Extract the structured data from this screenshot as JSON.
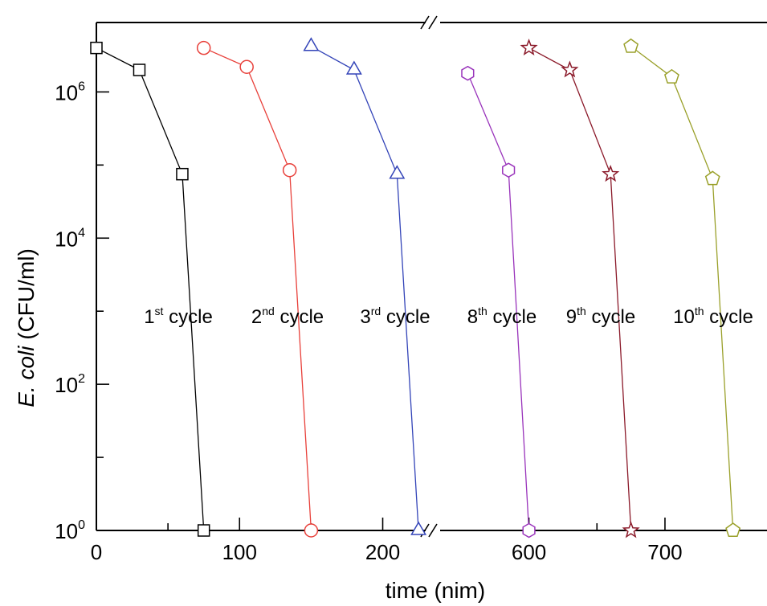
{
  "chart_data": {
    "type": "line",
    "xlabel": "time (nim)",
    "ylabel_italic": "E. coli",
    "ylabel_rest": " (CFU/ml)",
    "y_scale": "log10",
    "ylim": [
      1,
      10000000
    ],
    "y_ticks": [
      {
        "base": "10",
        "exp": "0"
      },
      {
        "base": "10",
        "exp": "2"
      },
      {
        "base": "10",
        "exp": "4"
      },
      {
        "base": "10",
        "exp": "6"
      }
    ],
    "x_axis_break": true,
    "x_segments": [
      {
        "range": [
          0,
          230
        ],
        "ticks": [
          "0",
          "100",
          "200"
        ]
      },
      {
        "range": [
          530,
          775
        ],
        "ticks": [
          "600",
          "700"
        ]
      }
    ],
    "series": [
      {
        "marker": "square",
        "color": "#000000",
        "x": [
          0,
          30,
          60,
          75
        ],
        "y": [
          4000000,
          2000000,
          75000,
          1
        ]
      },
      {
        "marker": "circle",
        "color": "#e8403a",
        "x": [
          75,
          105,
          135,
          150
        ],
        "y": [
          4000000,
          2200000,
          85000,
          1
        ]
      },
      {
        "marker": "triangle",
        "color": "#3344b8",
        "x": [
          150,
          180,
          210,
          225
        ],
        "y": [
          4200000,
          2000000,
          75000,
          1
        ]
      },
      {
        "marker": "hexagon",
        "color": "#9933bb",
        "x": [
          555,
          585,
          600
        ],
        "y": [
          1800000,
          85000,
          1
        ]
      },
      {
        "marker": "star",
        "color": "#8b1a2a",
        "x": [
          600,
          630,
          660,
          675
        ],
        "y": [
          4000000,
          2000000,
          75000,
          1
        ]
      },
      {
        "marker": "pentagon",
        "color": "#9aa02a",
        "x": [
          675,
          705,
          735,
          750
        ],
        "y": [
          4200000,
          1600000,
          65000,
          1
        ]
      }
    ],
    "annotations": [
      {
        "pre": "1",
        "sup": "st",
        "post": " cycle"
      },
      {
        "pre": "2",
        "sup": "nd",
        "post": " cycle"
      },
      {
        "pre": "3",
        "sup": "rd",
        "post": " cycle"
      },
      {
        "pre": "8",
        "sup": "th",
        "post": " cycle"
      },
      {
        "pre": "9",
        "sup": "th",
        "post": " cycle"
      },
      {
        "pre": "10",
        "sup": "th",
        "post": " cycle"
      }
    ]
  }
}
